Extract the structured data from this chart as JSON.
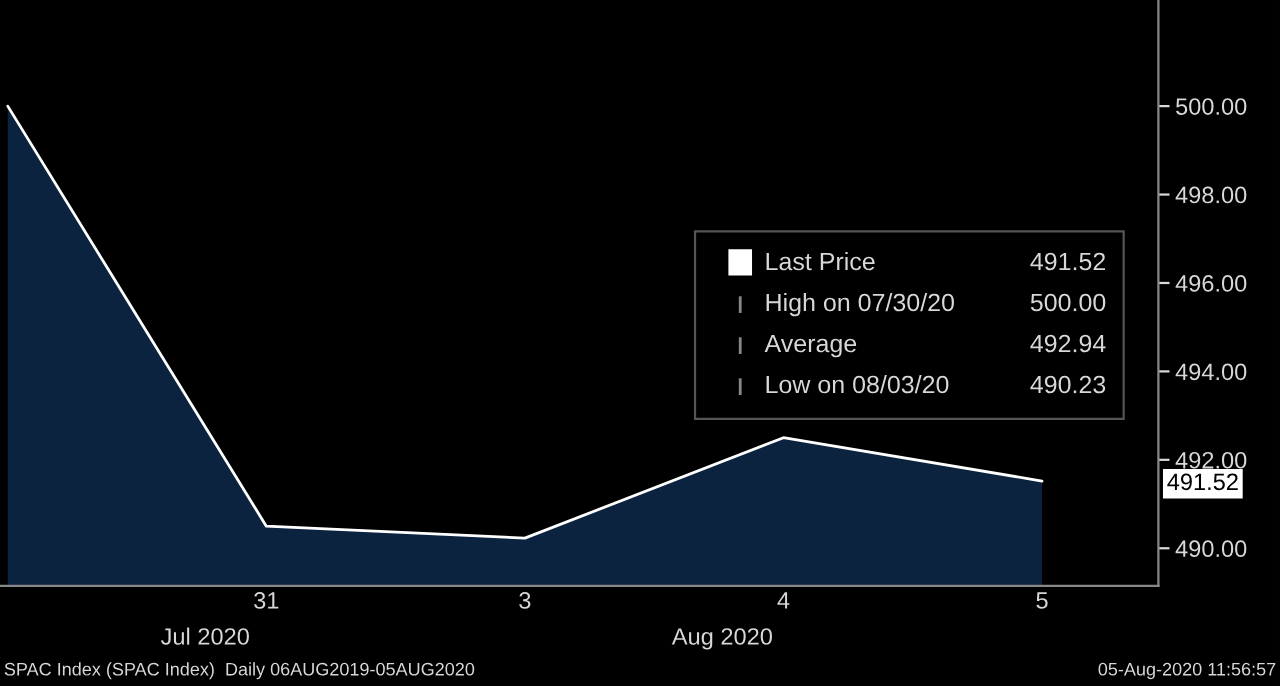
{
  "chart_data": {
    "type": "area",
    "categories": [
      null,
      "31",
      "3",
      "4",
      "5"
    ],
    "series": [
      {
        "name": "Last Price",
        "color": "#ffffff",
        "values": [
          500.0,
          490.5,
          490.23,
          492.5,
          491.52
        ]
      }
    ],
    "ylim": [
      489.15,
      502.4
    ],
    "yticks": [
      {
        "value": 490,
        "label": "490.00"
      },
      {
        "value": 492,
        "label": "492.00"
      },
      {
        "value": 494,
        "label": "494.00"
      },
      {
        "value": 496,
        "label": "496.00"
      },
      {
        "value": 498,
        "label": "498.00"
      },
      {
        "value": 500,
        "label": "500.00"
      }
    ],
    "grid": false,
    "legend": "right",
    "annotations": [
      "491.52",
      "High on 07/30/20",
      "500.00",
      "Average",
      "492.94",
      "Low on 08/03/20",
      "490.23",
      "SPAC Index (SPAC Index)  Daily 06AUG2019-05AUG2020",
      "05-Aug-2020 11:56:57",
      "Jul 2020",
      "Aug 2020",
      "491.52"
    ]
  }
}
